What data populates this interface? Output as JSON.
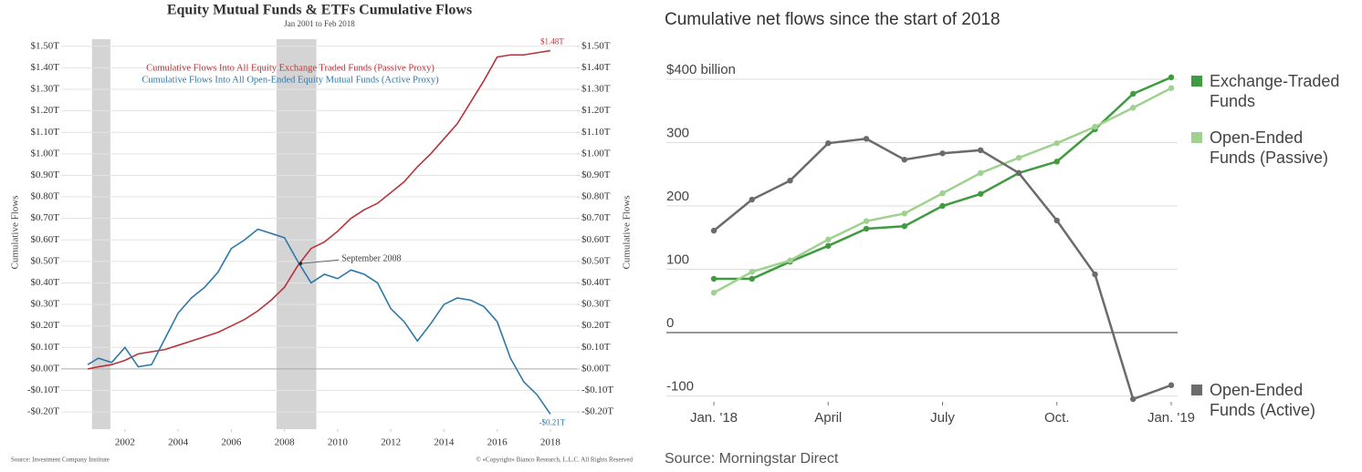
{
  "chart_data": [
    {
      "type": "line",
      "title": "Equity Mutual Funds & ETFs Cumulative Flows",
      "subtitle": "Jan 2001 to Feb 2018",
      "ylabel": "Cumulative Flows",
      "y2label": "Cumulative Flows",
      "x": [
        2000.6,
        2001,
        2001.5,
        2002,
        2002.5,
        2003,
        2003.5,
        2004,
        2004.5,
        2005,
        2005.5,
        2006,
        2006.5,
        2007,
        2007.5,
        2008,
        2008.5,
        2009,
        2009.5,
        2010,
        2010.5,
        2011,
        2011.5,
        2012,
        2012.5,
        2013,
        2013.5,
        2014,
        2014.5,
        2015,
        2015.5,
        2016,
        2016.5,
        2017,
        2017.5,
        2018
      ],
      "xlim": [
        1999.6,
        2019.0
      ],
      "xticks": [
        2002,
        2004,
        2006,
        2008,
        2010,
        2012,
        2014,
        2016,
        2018
      ],
      "ylim": [
        -0.28,
        1.55
      ],
      "yticks": [
        {
          "value": -0.2,
          "label": "-$0.20T"
        },
        {
          "value": -0.1,
          "label": "-$0.10T"
        },
        {
          "value": 0,
          "label": "$0.00T"
        },
        {
          "value": 0.1,
          "label": "$0.10T"
        },
        {
          "value": 0.2,
          "label": "$0.20T"
        },
        {
          "value": 0.3,
          "label": "$0.30T"
        },
        {
          "value": 0.4,
          "label": "$0.40T"
        },
        {
          "value": 0.5,
          "label": "$0.50T"
        },
        {
          "value": 0.6,
          "label": "$0.60T"
        },
        {
          "value": 0.7,
          "label": "$0.70T"
        },
        {
          "value": 0.8,
          "label": "$0.80T"
        },
        {
          "value": 0.9,
          "label": "$0.90T"
        },
        {
          "value": 1.0,
          "label": "$1.00T"
        },
        {
          "value": 1.1,
          "label": "$1.10T"
        },
        {
          "value": 1.2,
          "label": "$1.20T"
        },
        {
          "value": 1.3,
          "label": "$1.30T"
        },
        {
          "value": 1.4,
          "label": "$1.40T"
        },
        {
          "value": 1.5,
          "label": "$1.50T"
        }
      ],
      "y2lim": [
        -0.28,
        1.55
      ],
      "y2ticks": [
        {
          "value": -0.2,
          "label": "-$0.20T"
        },
        {
          "value": -0.1,
          "label": "-$0.10T"
        },
        {
          "value": 0,
          "label": "$0.00T"
        },
        {
          "value": 0.1,
          "label": "$0.10T"
        },
        {
          "value": 0.2,
          "label": "$0.20T"
        },
        {
          "value": 0.3,
          "label": "$0.30T"
        },
        {
          "value": 0.4,
          "label": "$0.40T"
        },
        {
          "value": 0.5,
          "label": "$0.50T"
        },
        {
          "value": 0.6,
          "label": "$0.60T"
        },
        {
          "value": 0.7,
          "label": "$0.70T"
        },
        {
          "value": 0.8,
          "label": "$0.80T"
        },
        {
          "value": 0.9,
          "label": "$0.90T"
        },
        {
          "value": 1.0,
          "label": "$1.00T"
        },
        {
          "value": 1.1,
          "label": "$1.10T"
        },
        {
          "value": 1.2,
          "label": "$1.20T"
        },
        {
          "value": 1.3,
          "label": "$1.30T"
        },
        {
          "value": 1.4,
          "label": "$1.40T"
        },
        {
          "value": 1.5,
          "label": "$1.50T"
        }
      ],
      "grid": true,
      "shaded_periods": [
        [
          2000.76,
          2001.45
        ],
        [
          2007.7,
          2009.2
        ]
      ],
      "series": [
        {
          "name": "Cumulative Flows Into All Equity Exchange Traded Funds (Passive Proxy)",
          "color": "#b8343a",
          "end_label": "$1.48T",
          "values": [
            0,
            0.01,
            0.02,
            0.04,
            0.07,
            0.08,
            0.09,
            0.11,
            0.13,
            0.15,
            0.17,
            0.2,
            0.23,
            0.27,
            0.32,
            0.38,
            0.48,
            0.56,
            0.59,
            0.64,
            0.7,
            0.74,
            0.77,
            0.82,
            0.87,
            0.94,
            1.0,
            1.07,
            1.14,
            1.24,
            1.34,
            1.45,
            1.46,
            1.46,
            1.47,
            1.48
          ]
        },
        {
          "name": "Cumulative Flows Into All Open-Ended Equity Mutual Funds (Active Proxy)",
          "color": "#2e78a8",
          "end_label": "-$0.21T",
          "values": [
            0.02,
            0.05,
            0.03,
            0.1,
            0.01,
            0.02,
            0.14,
            0.26,
            0.33,
            0.38,
            0.45,
            0.56,
            0.6,
            0.65,
            0.63,
            0.61,
            0.5,
            0.4,
            0.44,
            0.42,
            0.46,
            0.44,
            0.4,
            0.28,
            0.22,
            0.13,
            0.21,
            0.3,
            0.33,
            0.32,
            0.29,
            0.22,
            0.05,
            -0.06,
            -0.12,
            -0.21
          ]
        }
      ],
      "annotation": {
        "text": "September 2008",
        "x": 2008.5,
        "y": 0.49
      },
      "source": "Source: Investment Company Institute",
      "copyright": "© «Copyright» Bianco Research, L.L.C. All Rights Reserved"
    },
    {
      "type": "line",
      "title": "Cumulative net flows since the start of 2018",
      "categories": [
        "Jan. '18",
        null,
        null,
        "April",
        null,
        null,
        "July",
        null,
        null,
        "Oct.",
        null,
        null,
        "Jan. '19"
      ],
      "ylim": [
        -115,
        410
      ],
      "yticks": [
        -100,
        0,
        100,
        200,
        300,
        {
          "value": 400,
          "label": "$400 billion"
        }
      ],
      "grid": true,
      "legend": "right",
      "series": [
        {
          "name": "Exchange-Traded Funds",
          "color": "#3f9b3f",
          "values": [
            85,
            85,
            112,
            137,
            164,
            168,
            200,
            219,
            252,
            270,
            321,
            377,
            403
          ]
        },
        {
          "name": "Open-Ended Funds (Passive)",
          "color": "#9fd18f",
          "values": [
            63,
            96,
            114,
            147,
            176,
            188,
            220,
            252,
            276,
            299,
            325,
            355,
            386
          ]
        },
        {
          "name": "Open-Ended Funds (Active)",
          "color": "#6b6b6b",
          "values": [
            161,
            210,
            240,
            299,
            306,
            273,
            283,
            288,
            252,
            177,
            92,
            -105,
            -83
          ]
        }
      ],
      "source": "Source: Morningstar Direct"
    }
  ]
}
